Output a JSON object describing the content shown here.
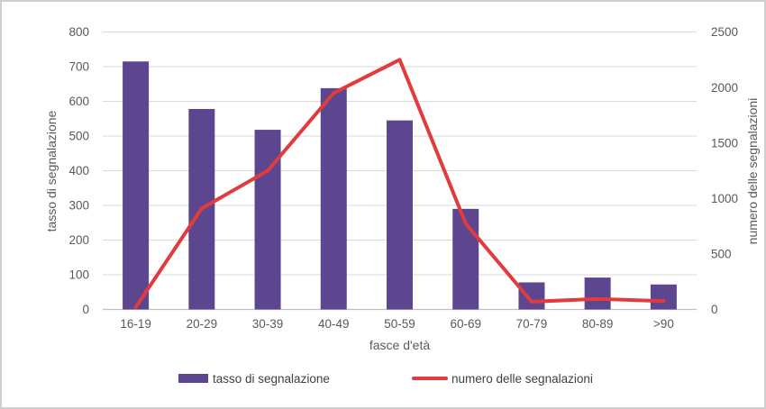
{
  "chart_data": {
    "type": "combo",
    "categories": [
      "16-19",
      "20-29",
      "30-39",
      "40-49",
      "50-59",
      "60-69",
      "70-79",
      "80-89",
      ">90"
    ],
    "series": [
      {
        "name": "tasso di segnalazione",
        "type": "bar",
        "axis": "left",
        "color": "#5c4690",
        "values": [
          715,
          578,
          518,
          638,
          545,
          290,
          78,
          92,
          72
        ]
      },
      {
        "name": "numero delle segnalazioni",
        "type": "line",
        "axis": "right",
        "color": "#e23b3e",
        "values": [
          20,
          910,
          1250,
          1950,
          2250,
          775,
          70,
          95,
          75
        ]
      }
    ],
    "left_axis": {
      "title": "tasso di segnalazione",
      "min": 0,
      "max": 800,
      "step": 100,
      "ticks": [
        "0",
        "100",
        "200",
        "300",
        "400",
        "500",
        "600",
        "700",
        "800"
      ]
    },
    "right_axis": {
      "title": "numero delle segnalazioni",
      "min": 0,
      "max": 2500,
      "step": 500,
      "ticks": [
        "0",
        "500",
        "1000",
        "1500",
        "2000",
        "2500"
      ]
    },
    "x_axis": {
      "title": "fasce d'età"
    },
    "legend": {
      "position": "bottom"
    },
    "style": {
      "gridline_color": "#d9d9d9",
      "axis_line_color": "#bfbfbf",
      "tick_label_color": "#595959",
      "grid": "horizontal"
    }
  }
}
